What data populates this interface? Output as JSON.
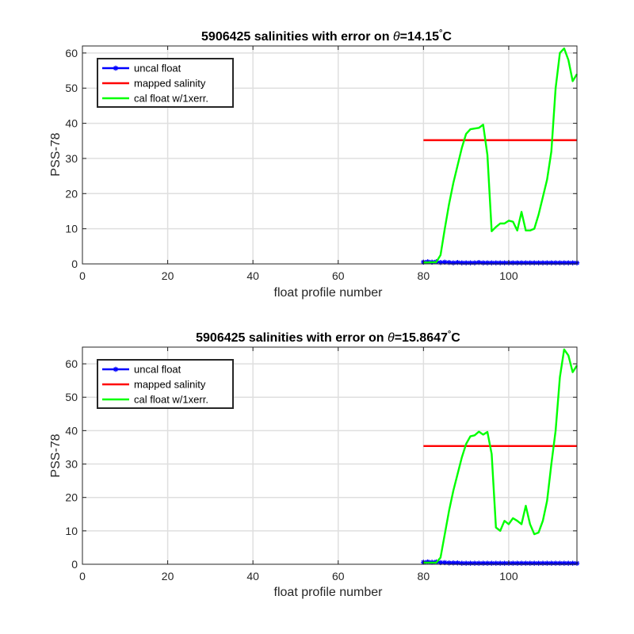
{
  "chart_data": [
    {
      "type": "line",
      "title_prefix": "5906425 salinities with error on ",
      "title_theta": "θ",
      "title_value": "=14.15",
      "title_degree": "°",
      "title_unit": "C",
      "xlabel": "float profile number",
      "ylabel": "PSS-78",
      "xlim": [
        0,
        116
      ],
      "ylim": [
        0,
        62
      ],
      "xticks": [
        0,
        20,
        40,
        60,
        80,
        100
      ],
      "yticks": [
        0,
        10,
        20,
        30,
        40,
        50,
        60
      ],
      "grid": true,
      "legend_position": "top-left",
      "series": [
        {
          "name": "uncal float",
          "color": "#0000ff",
          "marker": "asterisk",
          "x": [
            80,
            81,
            82,
            83,
            84,
            85,
            86,
            87,
            88,
            89,
            90,
            91,
            92,
            93,
            94,
            95,
            96,
            97,
            98,
            99,
            100,
            101,
            102,
            103,
            104,
            105,
            106,
            107,
            108,
            109,
            110,
            111,
            112,
            113,
            114,
            115,
            116
          ],
          "y": [
            0.5,
            0.6,
            0.5,
            0.6,
            0.4,
            0.5,
            0.4,
            0.3,
            0.4,
            0.3,
            0.3,
            0.3,
            0.3,
            0.4,
            0.3,
            0.3,
            0.3,
            0.3,
            0.3,
            0.3,
            0.3,
            0.3,
            0.3,
            0.3,
            0.3,
            0.3,
            0.3,
            0.3,
            0.3,
            0.3,
            0.3,
            0.3,
            0.3,
            0.3,
            0.3,
            0.3,
            0.3
          ]
        },
        {
          "name": "mapped salinity",
          "color": "#ff0000",
          "x": [
            80,
            116
          ],
          "y": [
            35.2,
            35.2
          ]
        },
        {
          "name": "cal float w/1xerr.",
          "color": "#00ff00",
          "x": [
            80,
            83,
            84,
            85,
            86,
            87,
            88,
            89,
            90,
            91,
            92,
            93,
            94,
            95,
            96,
            97,
            98,
            99,
            100,
            101,
            102,
            103,
            104,
            105,
            106,
            107,
            108,
            109,
            110,
            111,
            112,
            113,
            114,
            115,
            116
          ],
          "y": [
            0.4,
            0.5,
            2.5,
            10,
            17,
            23,
            28,
            33,
            37,
            38.3,
            38.5,
            38.7,
            39.6,
            31,
            9.3,
            10.5,
            11.5,
            11.5,
            12.3,
            12,
            9.5,
            14.8,
            9.5,
            9.5,
            10,
            14,
            19,
            24,
            32,
            50,
            60,
            61.3,
            58,
            52,
            54
          ]
        }
      ]
    },
    {
      "type": "line",
      "title_prefix": "5906425 salinities with error on ",
      "title_theta": "θ",
      "title_value": "=15.8647",
      "title_degree": "°",
      "title_unit": "C",
      "xlabel": "float profile number",
      "ylabel": "PSS-78",
      "xlim": [
        0,
        116
      ],
      "ylim": [
        0,
        65
      ],
      "xticks": [
        0,
        20,
        40,
        60,
        80,
        100
      ],
      "yticks": [
        0,
        10,
        20,
        30,
        40,
        50,
        60
      ],
      "grid": true,
      "legend_position": "top-left",
      "series": [
        {
          "name": "uncal float",
          "color": "#0000ff",
          "marker": "asterisk",
          "x": [
            80,
            81,
            82,
            83,
            84,
            85,
            86,
            87,
            88,
            89,
            90,
            91,
            92,
            93,
            94,
            95,
            96,
            97,
            98,
            99,
            100,
            101,
            102,
            103,
            104,
            105,
            106,
            107,
            108,
            109,
            110,
            111,
            112,
            113,
            114,
            115,
            116
          ],
          "y": [
            0.6,
            0.7,
            0.6,
            0.7,
            0.5,
            0.5,
            0.4,
            0.4,
            0.4,
            0.3,
            0.3,
            0.3,
            0.3,
            0.3,
            0.3,
            0.3,
            0.3,
            0.3,
            0.3,
            0.3,
            0.3,
            0.3,
            0.3,
            0.3,
            0.3,
            0.3,
            0.3,
            0.3,
            0.3,
            0.3,
            0.3,
            0.3,
            0.3,
            0.3,
            0.3,
            0.3,
            0.3
          ]
        },
        {
          "name": "mapped salinity",
          "color": "#ff0000",
          "x": [
            80,
            116
          ],
          "y": [
            35.4,
            35.4
          ]
        },
        {
          "name": "cal float w/1xerr.",
          "color": "#00ff00",
          "x": [
            80,
            83,
            84,
            85,
            86,
            87,
            88,
            89,
            90,
            91,
            92,
            93,
            94,
            95,
            96,
            97,
            98,
            99,
            100,
            101,
            102,
            103,
            104,
            105,
            106,
            107,
            108,
            109,
            110,
            111,
            112,
            113,
            114,
            115,
            116
          ],
          "y": [
            0.5,
            0.5,
            2,
            9,
            16,
            22,
            27,
            32,
            36,
            38.3,
            38.6,
            39.7,
            38.8,
            39.6,
            33,
            11,
            10,
            13,
            12,
            13.8,
            13,
            12,
            17.5,
            12,
            9,
            9.5,
            13,
            19,
            30,
            40,
            56,
            64.3,
            62.5,
            57.5,
            59.5
          ]
        }
      ]
    }
  ]
}
